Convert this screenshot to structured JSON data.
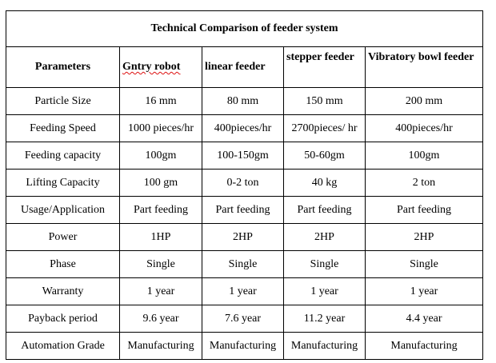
{
  "table": {
    "title": "Technical Comparison of feeder system",
    "headers": [
      "Parameters",
      "Gntry robot",
      "linear feeder",
      "stepper feeder",
      "Vibratory bowl feeder"
    ],
    "rows": [
      [
        "Particle Size",
        "16 mm",
        "80 mm",
        "150 mm",
        "200 mm"
      ],
      [
        "Feeding Speed",
        "1000 pieces/hr",
        "400pieces/hr",
        "2700pieces/ hr",
        "400pieces/hr"
      ],
      [
        "Feeding capacity",
        "100gm",
        "100-150gm",
        "50-60gm",
        "100gm"
      ],
      [
        "Lifting Capacity",
        "100 gm",
        "0-2 ton",
        "40 kg",
        "2 ton"
      ],
      [
        "Usage/Application",
        "Part feeding",
        "Part feeding",
        "Part feeding",
        "Part feeding"
      ],
      [
        "Power",
        "1HP",
        "2HP",
        "2HP",
        "2HP"
      ],
      [
        "Phase",
        "Single",
        "Single",
        "Single",
        "Single"
      ],
      [
        "Warranty",
        "1 year",
        "1 year",
        "1 year",
        "1 year"
      ],
      [
        "Payback period",
        "9.6 year",
        "7.6 year",
        "11.2 year",
        "4.4 year"
      ],
      [
        "Automation Grade",
        "Manufacturing",
        "Manufacturing",
        "Manufacturing",
        "Manufacturing"
      ]
    ]
  }
}
